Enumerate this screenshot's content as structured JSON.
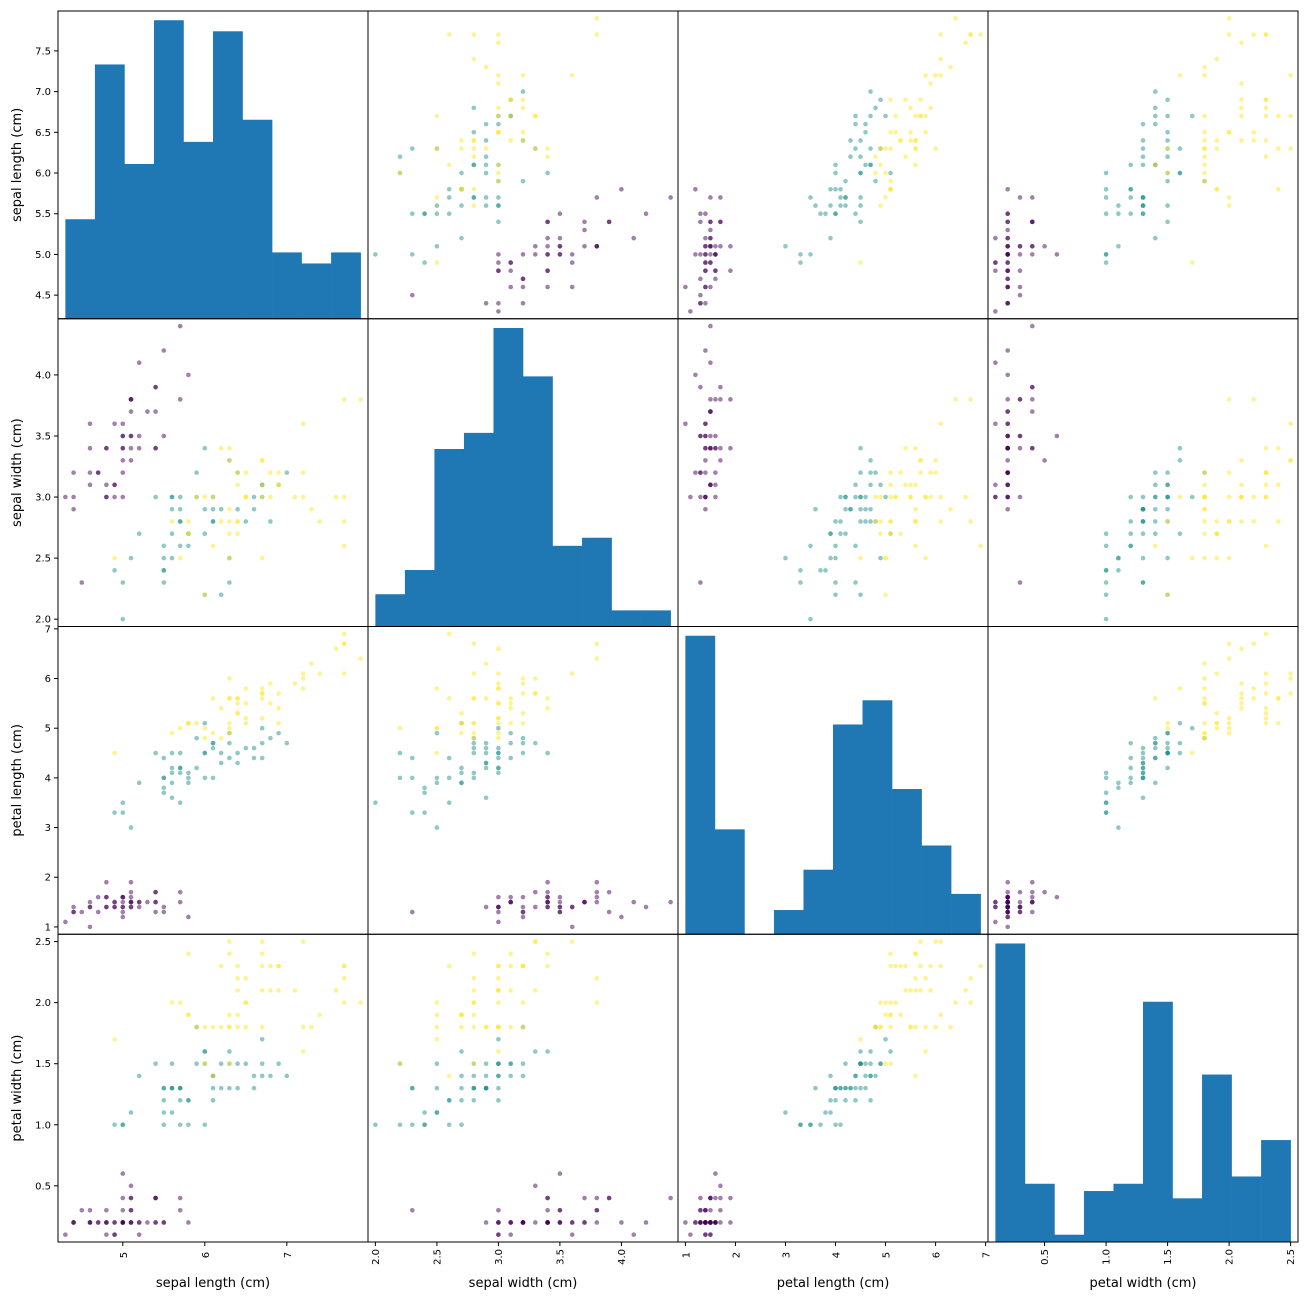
{
  "chart_data": {
    "type": "scatter_matrix",
    "variables": [
      "sepal length (cm)",
      "sepal width (cm)",
      "petal length (cm)",
      "petal width (cm)"
    ],
    "ranges": [
      [
        4.3,
        7.9
      ],
      [
        2.0,
        4.4
      ],
      [
        1.0,
        6.9
      ],
      [
        0.1,
        2.5
      ]
    ],
    "xticks": [
      {
        "values": [
          5,
          6,
          7
        ],
        "labels": [
          "5",
          "6",
          "7"
        ],
        "rotated": false
      },
      {
        "values": [
          2.0,
          2.5,
          3.0,
          3.5,
          4.0
        ],
        "labels": [
          "2.0",
          "2.5",
          "3.0",
          "3.5",
          "4.0"
        ],
        "rotated": true
      },
      {
        "values": [
          1,
          2,
          3,
          4,
          5,
          6,
          7
        ],
        "labels": [
          "1",
          "2",
          "3",
          "4",
          "5",
          "6",
          "7"
        ],
        "rotated": false
      },
      {
        "values": [
          0.5,
          1.0,
          1.5,
          2.0,
          2.5
        ],
        "labels": [
          "0.5",
          "1.0",
          "1.5",
          "2.0",
          "2.5"
        ],
        "rotated": true
      }
    ],
    "yticks": [
      {
        "values": [
          4.5,
          5.0,
          5.5,
          6.0,
          6.5,
          7.0,
          7.5
        ],
        "labels": [
          "4.5",
          "5.0",
          "5.5",
          "6.0",
          "6.5",
          "7.0",
          "7.5"
        ]
      },
      {
        "values": [
          2.0,
          2.5,
          3.0,
          3.5,
          4.0
        ],
        "labels": [
          "2.0",
          "2.5",
          "3.0",
          "3.5",
          "4.0"
        ]
      },
      {
        "values": [
          1,
          2,
          3,
          4,
          5,
          6,
          7
        ],
        "labels": [
          "1",
          "2",
          "3",
          "4",
          "5",
          "6",
          "7"
        ]
      },
      {
        "values": [
          0.5,
          1.0,
          1.5,
          2.0,
          2.5
        ],
        "labels": [
          "0.5",
          "1.0",
          "1.5",
          "2.0",
          "2.5"
        ]
      }
    ],
    "histograms": [
      {
        "bins": 10,
        "counts": [
          9,
          23,
          14,
          27,
          16,
          26,
          18,
          6,
          5,
          6
        ]
      },
      {
        "bins": 10,
        "counts": [
          4,
          7,
          22,
          24,
          37,
          31,
          10,
          11,
          2,
          2
        ]
      },
      {
        "bins": 10,
        "counts": [
          37,
          13,
          0,
          3,
          8,
          26,
          29,
          18,
          11,
          5
        ]
      },
      {
        "bins": 10,
        "counts": [
          41,
          8,
          1,
          7,
          8,
          33,
          6,
          23,
          9,
          14
        ]
      }
    ],
    "hist_color": "#1f77b4",
    "class_colors": [
      "#440154",
      "#21918c",
      "#fde725"
    ],
    "point_alpha": 0.5,
    "points": [
      [
        5.1,
        3.5,
        1.4,
        0.2,
        0
      ],
      [
        4.9,
        3.0,
        1.4,
        0.2,
        0
      ],
      [
        4.7,
        3.2,
        1.3,
        0.2,
        0
      ],
      [
        4.6,
        3.1,
        1.5,
        0.2,
        0
      ],
      [
        5.0,
        3.6,
        1.4,
        0.2,
        0
      ],
      [
        5.4,
        3.9,
        1.7,
        0.4,
        0
      ],
      [
        4.6,
        3.4,
        1.4,
        0.3,
        0
      ],
      [
        5.0,
        3.4,
        1.5,
        0.2,
        0
      ],
      [
        4.4,
        2.9,
        1.4,
        0.2,
        0
      ],
      [
        4.9,
        3.1,
        1.5,
        0.1,
        0
      ],
      [
        5.4,
        3.7,
        1.5,
        0.2,
        0
      ],
      [
        4.8,
        3.4,
        1.6,
        0.2,
        0
      ],
      [
        4.8,
        3.0,
        1.4,
        0.1,
        0
      ],
      [
        4.3,
        3.0,
        1.1,
        0.1,
        0
      ],
      [
        5.8,
        4.0,
        1.2,
        0.2,
        0
      ],
      [
        5.7,
        4.4,
        1.5,
        0.4,
        0
      ],
      [
        5.4,
        3.9,
        1.3,
        0.4,
        0
      ],
      [
        5.1,
        3.5,
        1.4,
        0.3,
        0
      ],
      [
        5.7,
        3.8,
        1.7,
        0.3,
        0
      ],
      [
        5.1,
        3.8,
        1.5,
        0.3,
        0
      ],
      [
        5.4,
        3.4,
        1.7,
        0.2,
        0
      ],
      [
        5.1,
        3.7,
        1.5,
        0.4,
        0
      ],
      [
        4.6,
        3.6,
        1.0,
        0.2,
        0
      ],
      [
        5.1,
        3.3,
        1.7,
        0.5,
        0
      ],
      [
        4.8,
        3.4,
        1.9,
        0.2,
        0
      ],
      [
        5.0,
        3.0,
        1.6,
        0.2,
        0
      ],
      [
        5.0,
        3.4,
        1.6,
        0.4,
        0
      ],
      [
        5.2,
        3.5,
        1.5,
        0.2,
        0
      ],
      [
        5.2,
        3.4,
        1.4,
        0.2,
        0
      ],
      [
        4.7,
        3.2,
        1.6,
        0.2,
        0
      ],
      [
        4.8,
        3.1,
        1.6,
        0.2,
        0
      ],
      [
        5.4,
        3.4,
        1.5,
        0.4,
        0
      ],
      [
        5.2,
        4.1,
        1.5,
        0.1,
        0
      ],
      [
        5.5,
        4.2,
        1.4,
        0.2,
        0
      ],
      [
        4.9,
        3.1,
        1.5,
        0.2,
        0
      ],
      [
        5.0,
        3.2,
        1.2,
        0.2,
        0
      ],
      [
        5.5,
        3.5,
        1.3,
        0.2,
        0
      ],
      [
        4.9,
        3.6,
        1.4,
        0.1,
        0
      ],
      [
        4.4,
        3.0,
        1.3,
        0.2,
        0
      ],
      [
        5.1,
        3.4,
        1.5,
        0.2,
        0
      ],
      [
        5.0,
        3.5,
        1.3,
        0.3,
        0
      ],
      [
        4.5,
        2.3,
        1.3,
        0.3,
        0
      ],
      [
        4.4,
        3.2,
        1.3,
        0.2,
        0
      ],
      [
        5.0,
        3.5,
        1.6,
        0.6,
        0
      ],
      [
        5.1,
        3.8,
        1.9,
        0.4,
        0
      ],
      [
        4.8,
        3.0,
        1.4,
        0.3,
        0
      ],
      [
        5.1,
        3.8,
        1.6,
        0.2,
        0
      ],
      [
        4.6,
        3.2,
        1.4,
        0.2,
        0
      ],
      [
        5.3,
        3.7,
        1.5,
        0.2,
        0
      ],
      [
        5.0,
        3.3,
        1.4,
        0.2,
        0
      ],
      [
        7.0,
        3.2,
        4.7,
        1.4,
        1
      ],
      [
        6.4,
        3.2,
        4.5,
        1.5,
        1
      ],
      [
        6.9,
        3.1,
        4.9,
        1.5,
        1
      ],
      [
        5.5,
        2.3,
        4.0,
        1.3,
        1
      ],
      [
        6.5,
        2.8,
        4.6,
        1.5,
        1
      ],
      [
        5.7,
        2.8,
        4.5,
        1.3,
        1
      ],
      [
        6.3,
        3.3,
        4.7,
        1.6,
        1
      ],
      [
        4.9,
        2.4,
        3.3,
        1.0,
        1
      ],
      [
        6.6,
        2.9,
        4.6,
        1.3,
        1
      ],
      [
        5.2,
        2.7,
        3.9,
        1.4,
        1
      ],
      [
        5.0,
        2.0,
        3.5,
        1.0,
        1
      ],
      [
        5.9,
        3.0,
        4.2,
        1.5,
        1
      ],
      [
        6.0,
        2.2,
        4.0,
        1.0,
        1
      ],
      [
        6.1,
        2.9,
        4.7,
        1.4,
        1
      ],
      [
        5.6,
        2.9,
        3.6,
        1.3,
        1
      ],
      [
        6.7,
        3.1,
        4.4,
        1.4,
        1
      ],
      [
        5.6,
        3.0,
        4.5,
        1.5,
        1
      ],
      [
        5.8,
        2.7,
        4.1,
        1.0,
        1
      ],
      [
        6.2,
        2.2,
        4.5,
        1.5,
        1
      ],
      [
        5.6,
        2.5,
        3.9,
        1.1,
        1
      ],
      [
        5.9,
        3.2,
        4.8,
        1.8,
        1
      ],
      [
        6.1,
        2.8,
        4.0,
        1.3,
        1
      ],
      [
        6.3,
        2.5,
        4.9,
        1.5,
        1
      ],
      [
        6.1,
        2.8,
        4.7,
        1.2,
        1
      ],
      [
        6.4,
        2.9,
        4.3,
        1.3,
        1
      ],
      [
        6.6,
        3.0,
        4.4,
        1.4,
        1
      ],
      [
        6.8,
        2.8,
        4.8,
        1.4,
        1
      ],
      [
        6.7,
        3.0,
        5.0,
        1.7,
        1
      ],
      [
        6.0,
        2.9,
        4.5,
        1.5,
        1
      ],
      [
        5.7,
        2.6,
        3.5,
        1.0,
        1
      ],
      [
        5.5,
        2.4,
        3.8,
        1.1,
        1
      ],
      [
        5.5,
        2.4,
        3.7,
        1.0,
        1
      ],
      [
        5.8,
        2.7,
        3.9,
        1.2,
        1
      ],
      [
        6.0,
        2.7,
        5.1,
        1.6,
        1
      ],
      [
        5.4,
        3.0,
        4.5,
        1.5,
        1
      ],
      [
        6.0,
        3.4,
        4.5,
        1.6,
        1
      ],
      [
        6.7,
        3.1,
        4.7,
        1.5,
        1
      ],
      [
        6.3,
        2.3,
        4.4,
        1.3,
        1
      ],
      [
        5.6,
        3.0,
        4.1,
        1.3,
        1
      ],
      [
        5.5,
        2.5,
        4.0,
        1.3,
        1
      ],
      [
        5.5,
        2.6,
        4.4,
        1.2,
        1
      ],
      [
        6.1,
        3.0,
        4.6,
        1.4,
        1
      ],
      [
        5.8,
        2.6,
        4.0,
        1.2,
        1
      ],
      [
        5.0,
        2.3,
        3.3,
        1.0,
        1
      ],
      [
        5.6,
        2.7,
        4.2,
        1.3,
        1
      ],
      [
        5.7,
        3.0,
        4.2,
        1.2,
        1
      ],
      [
        5.7,
        2.9,
        4.2,
        1.3,
        1
      ],
      [
        6.2,
        2.9,
        4.3,
        1.3,
        1
      ],
      [
        5.1,
        2.5,
        3.0,
        1.1,
        1
      ],
      [
        5.7,
        2.8,
        4.1,
        1.3,
        1
      ],
      [
        6.3,
        3.3,
        6.0,
        2.5,
        2
      ],
      [
        5.8,
        2.7,
        5.1,
        1.9,
        2
      ],
      [
        7.1,
        3.0,
        5.9,
        2.1,
        2
      ],
      [
        6.3,
        2.9,
        5.6,
        1.8,
        2
      ],
      [
        6.5,
        3.0,
        5.8,
        2.2,
        2
      ],
      [
        7.6,
        3.0,
        6.6,
        2.1,
        2
      ],
      [
        4.9,
        2.5,
        4.5,
        1.7,
        2
      ],
      [
        7.3,
        2.9,
        6.3,
        1.8,
        2
      ],
      [
        6.7,
        2.5,
        5.8,
        1.8,
        2
      ],
      [
        7.2,
        3.6,
        6.1,
        2.5,
        2
      ],
      [
        6.5,
        3.2,
        5.1,
        2.0,
        2
      ],
      [
        6.4,
        2.7,
        5.3,
        1.9,
        2
      ],
      [
        6.8,
        3.0,
        5.5,
        2.1,
        2
      ],
      [
        5.7,
        2.5,
        5.0,
        2.0,
        2
      ],
      [
        5.8,
        2.8,
        5.1,
        2.4,
        2
      ],
      [
        6.4,
        3.2,
        5.3,
        2.3,
        2
      ],
      [
        6.5,
        3.0,
        5.5,
        1.8,
        2
      ],
      [
        7.7,
        3.8,
        6.7,
        2.2,
        2
      ],
      [
        7.7,
        2.6,
        6.9,
        2.3,
        2
      ],
      [
        6.0,
        2.2,
        5.0,
        1.5,
        2
      ],
      [
        6.9,
        3.2,
        5.7,
        2.3,
        2
      ],
      [
        5.6,
        2.8,
        4.9,
        2.0,
        2
      ],
      [
        7.7,
        2.8,
        6.7,
        2.0,
        2
      ],
      [
        6.3,
        2.7,
        4.9,
        1.8,
        2
      ],
      [
        6.7,
        3.3,
        5.7,
        2.1,
        2
      ],
      [
        7.2,
        3.2,
        6.0,
        1.8,
        2
      ],
      [
        6.2,
        2.8,
        4.8,
        1.8,
        2
      ],
      [
        6.1,
        3.0,
        4.9,
        1.8,
        2
      ],
      [
        6.4,
        2.8,
        5.6,
        2.1,
        2
      ],
      [
        7.2,
        3.0,
        5.8,
        1.6,
        2
      ],
      [
        7.4,
        2.8,
        6.1,
        1.9,
        2
      ],
      [
        7.9,
        3.8,
        6.4,
        2.0,
        2
      ],
      [
        6.4,
        2.8,
        5.6,
        2.2,
        2
      ],
      [
        6.3,
        2.8,
        5.1,
        1.5,
        2
      ],
      [
        6.1,
        2.6,
        5.6,
        1.4,
        2
      ],
      [
        7.7,
        3.0,
        6.1,
        2.3,
        2
      ],
      [
        6.3,
        3.4,
        5.6,
        2.4,
        2
      ],
      [
        6.4,
        3.1,
        5.5,
        1.8,
        2
      ],
      [
        6.0,
        3.0,
        4.8,
        1.8,
        2
      ],
      [
        6.9,
        3.1,
        5.4,
        2.1,
        2
      ],
      [
        6.7,
        3.1,
        5.6,
        2.4,
        2
      ],
      [
        6.9,
        3.1,
        5.1,
        2.3,
        2
      ],
      [
        5.8,
        2.7,
        5.1,
        1.9,
        2
      ],
      [
        6.8,
        3.2,
        5.9,
        2.3,
        2
      ],
      [
        6.7,
        3.3,
        5.7,
        2.5,
        2
      ],
      [
        6.7,
        3.0,
        5.2,
        2.3,
        2
      ],
      [
        6.3,
        2.5,
        5.0,
        1.9,
        2
      ],
      [
        6.5,
        3.0,
        5.2,
        2.0,
        2
      ],
      [
        6.2,
        3.4,
        5.4,
        2.3,
        2
      ],
      [
        5.9,
        3.0,
        5.1,
        1.8,
        2
      ]
    ]
  }
}
